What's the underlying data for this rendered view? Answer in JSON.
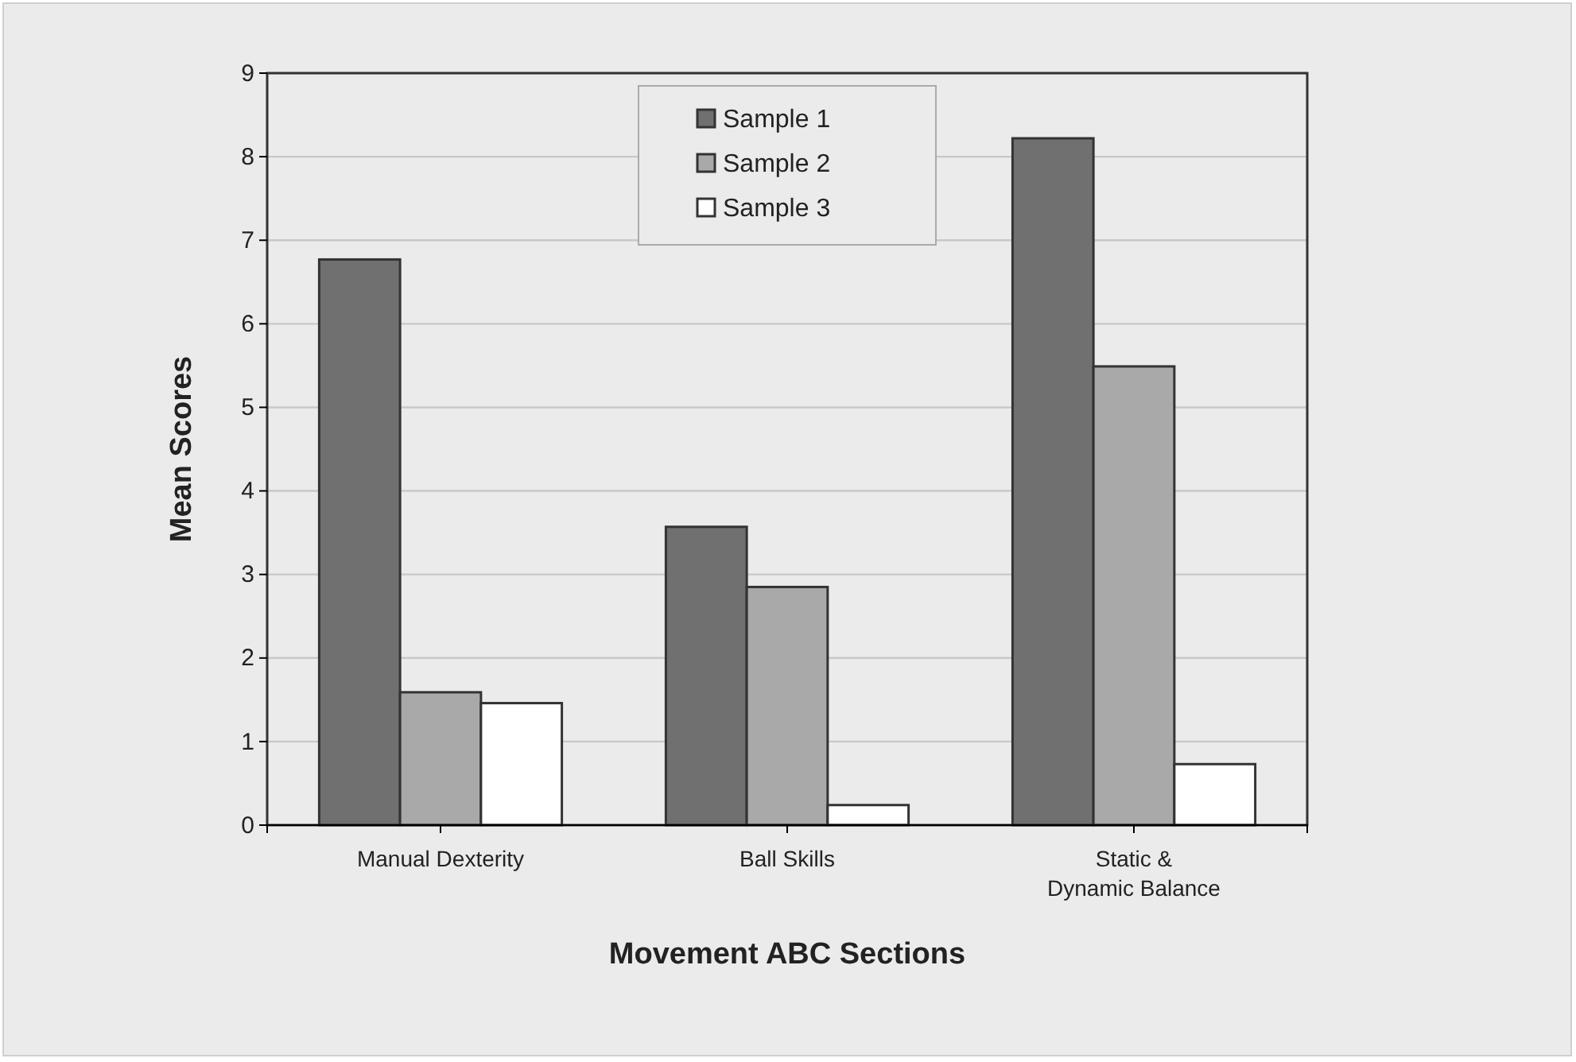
{
  "chart_data": {
    "type": "bar",
    "xlabel": "Movement ABC Sections",
    "ylabel": "Mean Scores",
    "categories": [
      "Manual Dexterity",
      "Ball Skills",
      "Static & Dynamic Balance"
    ],
    "series": [
      {
        "name": "Sample 1",
        "color": "#707070",
        "values": [
          6.77,
          3.57,
          8.22
        ]
      },
      {
        "name": "Sample 2",
        "color": "#a9a9a9",
        "values": [
          1.59,
          2.85,
          5.49
        ]
      },
      {
        "name": "Sample 3",
        "color": "#ffffff",
        "values": [
          1.46,
          0.24,
          0.73
        ]
      }
    ],
    "ylim": [
      0,
      9
    ],
    "yticks": [
      0,
      1,
      2,
      3,
      4,
      5,
      6,
      7,
      8,
      9
    ],
    "grid": "y",
    "legend": "top"
  }
}
